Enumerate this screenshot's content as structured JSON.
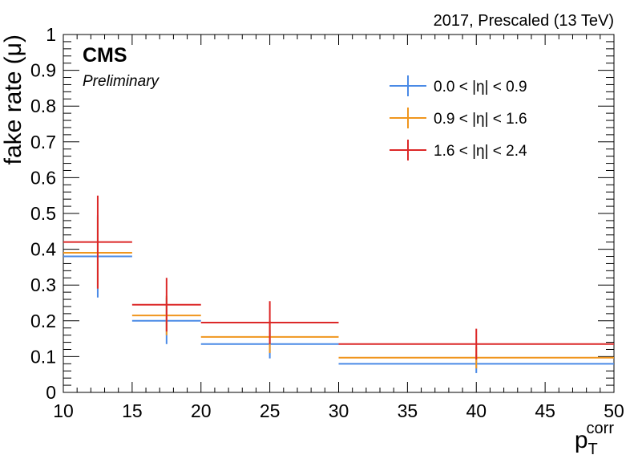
{
  "header": {
    "top_right": "2017, Prescaled (13 TeV)",
    "experiment": "CMS",
    "status": "Preliminary"
  },
  "chart_data": {
    "type": "errorbar",
    "xlabel": "p",
    "xlabel_sub": "T",
    "xlabel_sup": "corr",
    "ylabel": "fake rate (μ)",
    "xlim": [
      10,
      50
    ],
    "ylim": [
      0,
      1
    ],
    "x_ticks": [
      10,
      15,
      20,
      25,
      30,
      35,
      40,
      45,
      50
    ],
    "y_ticks": [
      0,
      0.1,
      0.2,
      0.3,
      0.4,
      0.5,
      0.6,
      0.7,
      0.8,
      0.9,
      1
    ],
    "y_tick_labels": [
      "0",
      "0.1",
      "0.2",
      "0.3",
      "0.4",
      "0.5",
      "0.6",
      "0.7",
      "0.8",
      "0.9",
      "1"
    ],
    "bin_edges": [
      10,
      15,
      20,
      30,
      50
    ],
    "bin_centers": [
      12.5,
      17.5,
      25,
      40
    ],
    "legend_position": "top-right",
    "series": [
      {
        "name": "0.0 < |η| < 0.9",
        "color": "#4a8ae6",
        "values": [
          0.38,
          0.2,
          0.135,
          0.08
        ],
        "errors": [
          0.115,
          0.065,
          0.04,
          0.026
        ]
      },
      {
        "name": "0.9 < |η| < 1.6",
        "color": "#f0961e",
        "values": [
          0.39,
          0.215,
          0.155,
          0.097
        ],
        "errors": [
          0.1,
          0.055,
          0.045,
          0.03
        ]
      },
      {
        "name": "1.6 < |η| < 2.4",
        "color": "#dc2828",
        "values": [
          0.42,
          0.245,
          0.195,
          0.135
        ],
        "errors": [
          0.13,
          0.075,
          0.06,
          0.043
        ]
      }
    ]
  }
}
